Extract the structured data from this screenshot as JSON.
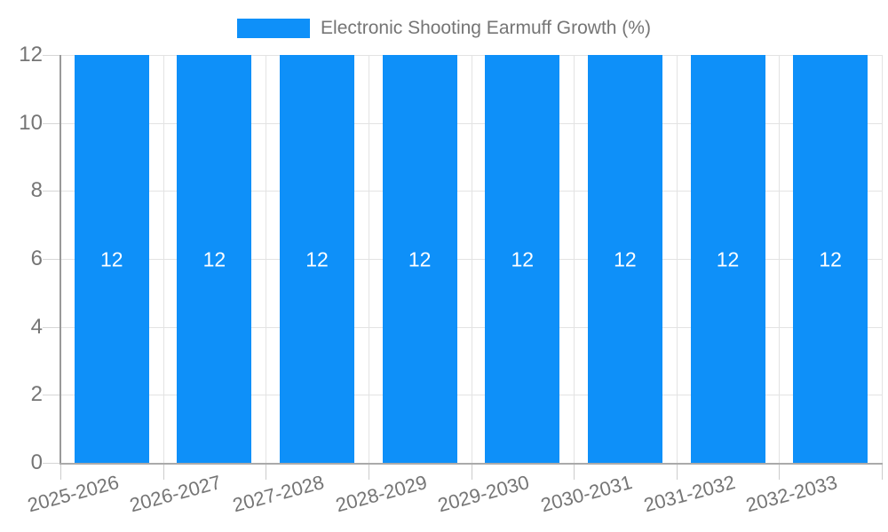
{
  "legend": {
    "label": "Electronic Shooting Earmuff Growth (%)"
  },
  "chart_data": {
    "type": "bar",
    "title": "Electronic Shooting Earmuff Growth (%)",
    "categories": [
      "2025-2026",
      "2026-2027",
      "2027-2028",
      "2028-2029",
      "2029-2030",
      "2030-2031",
      "2031-2032",
      "2032-2033"
    ],
    "series": [
      {
        "name": "Electronic Shooting Earmuff Growth (%)",
        "values": [
          12,
          12,
          12,
          12,
          12,
          12,
          12,
          12
        ]
      }
    ],
    "data_labels": [
      "12",
      "12",
      "12",
      "12",
      "12",
      "12",
      "12",
      "12"
    ],
    "xlabel": "",
    "ylabel": "",
    "ylim": [
      0,
      12
    ],
    "yticks": [
      0,
      2,
      4,
      6,
      8,
      10,
      12
    ],
    "grid": true,
    "legend_position": "top",
    "colors": {
      "bar": "#0e90f9",
      "data_label": "#ffffff",
      "axis_text": "#757575",
      "gridline": "#e3e3e3",
      "axis_line": "#999999"
    }
  }
}
